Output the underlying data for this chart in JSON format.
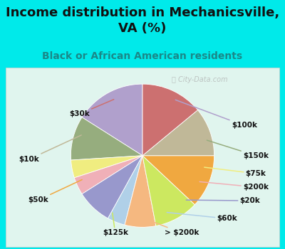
{
  "title": "Income distribution in Mechanicsville,\nVA (%)",
  "subtitle": "Black or African American residents",
  "watermark": "ⓘ City-Data.com",
  "labels": [
    "$100k",
    "$150k",
    "$75k",
    "$200k",
    "$20k",
    "$60k",
    "> $200k",
    "$125k",
    "$50k",
    "$10k",
    "$30k"
  ],
  "sizes": [
    16,
    10,
    4,
    4,
    8,
    4,
    7,
    10,
    12,
    11,
    14
  ],
  "colors": [
    "#b0a0cc",
    "#96ad7e",
    "#f0ed80",
    "#f0b0b8",
    "#9898cc",
    "#b0d0e8",
    "#f5b880",
    "#cce860",
    "#f0a840",
    "#c0b898",
    "#cc7070"
  ],
  "background_color": "#00eaea",
  "chart_bg": "#e0f5ee",
  "title_color": "#111111",
  "subtitle_color": "#1a8888",
  "title_fontsize": 13,
  "subtitle_fontsize": 10,
  "label_fontsize": 7.5,
  "label_color": "#111111"
}
